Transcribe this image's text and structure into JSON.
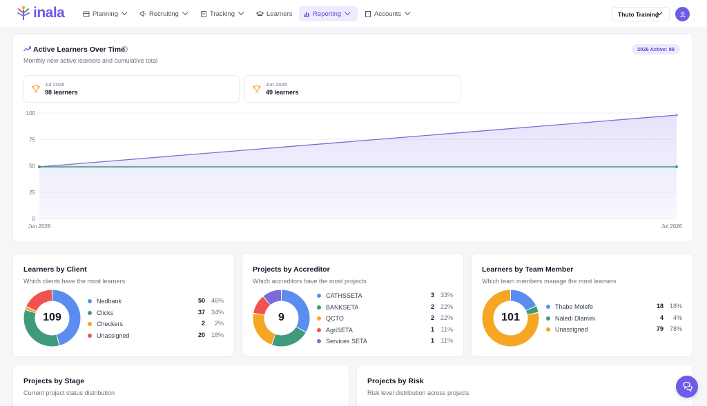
{
  "app": {
    "logo_text": "inala"
  },
  "nav": {
    "items": [
      {
        "label": "Planning",
        "icon": "calendar-icon"
      },
      {
        "label": "Recruiting",
        "icon": "megaphone-icon"
      },
      {
        "label": "Tracking",
        "icon": "clipboard-icon"
      },
      {
        "label": "Learners",
        "icon": "graduation-cap-icon"
      },
      {
        "label": "Reporting",
        "icon": "bar-chart-icon",
        "active": true
      },
      {
        "label": "Accounts",
        "icon": "building-icon"
      }
    ],
    "org_select": "Thuto Training"
  },
  "colors": {
    "accent": "#6c5ce7",
    "blue": "#5b8def",
    "green": "#3f9b7a",
    "orange": "#f5a623",
    "red": "#f0524f",
    "purple": "#7b6cd8"
  },
  "active_learners": {
    "title": "Active Learners Over Time",
    "subtitle": "Monthly new active learners and cumulative total",
    "badge": "2026 Active: 98",
    "stats": [
      {
        "period": "Jul 2026",
        "value": "98 learners"
      },
      {
        "period": "Jun 2026",
        "value": "49 learners"
      }
    ]
  },
  "chart_data": {
    "type": "area",
    "x": [
      "Jun 2026",
      "Jul 2026"
    ],
    "series": [
      {
        "values": [
          49,
          98
        ]
      },
      {
        "values": [
          49,
          49
        ]
      }
    ],
    "yticks": [
      "100",
      "75",
      "50",
      "25",
      "0"
    ],
    "ylim": [
      0,
      100
    ],
    "grid": true
  },
  "by_client": {
    "title": "Learners by Client",
    "subtitle": "Which clients have the most learners",
    "total": "109",
    "items": [
      {
        "label": "Nedbank",
        "count": "50",
        "pct": "46%",
        "value": 50,
        "color": "#5b8def"
      },
      {
        "label": "Clicks",
        "count": "37",
        "pct": "34%",
        "value": 37,
        "color": "#3f9b7a"
      },
      {
        "label": "Checkers",
        "count": "2",
        "pct": "2%",
        "value": 2,
        "color": "#f5a623"
      },
      {
        "label": "Unassigned",
        "count": "20",
        "pct": "18%",
        "value": 20,
        "color": "#f0524f"
      }
    ]
  },
  "by_accreditor": {
    "title": "Projects by Accreditor",
    "subtitle": "Which accreditors have the most projects",
    "total": "9",
    "items": [
      {
        "label": "CATHSSETA",
        "count": "3",
        "pct": "33%",
        "value": 3,
        "color": "#5b8def"
      },
      {
        "label": "BANKSETA",
        "count": "2",
        "pct": "22%",
        "value": 2,
        "color": "#3f9b7a"
      },
      {
        "label": "QCTO",
        "count": "2",
        "pct": "22%",
        "value": 2,
        "color": "#f5a623"
      },
      {
        "label": "AgriSETA",
        "count": "1",
        "pct": "11%",
        "value": 1,
        "color": "#f0524f"
      },
      {
        "label": "Services SETA",
        "count": "1",
        "pct": "11%",
        "value": 1,
        "color": "#7b6cd8"
      }
    ]
  },
  "by_team_member": {
    "title": "Learners by Team Member",
    "subtitle": "Which team members manage the most learners",
    "total": "101",
    "items": [
      {
        "label": "Thabo Molefe",
        "count": "18",
        "pct": "18%",
        "value": 18,
        "color": "#5b8def"
      },
      {
        "label": "Naledi Dlamini",
        "count": "4",
        "pct": "4%",
        "value": 4,
        "color": "#3f9b7a"
      },
      {
        "label": "Unassigned",
        "count": "79",
        "pct": "78%",
        "value": 79,
        "color": "#f5a623"
      }
    ]
  },
  "by_stage": {
    "title": "Projects by Stage",
    "subtitle": "Current project status distribution"
  },
  "by_risk": {
    "title": "Projects by Risk",
    "subtitle": "Risk level distribution across projects"
  }
}
